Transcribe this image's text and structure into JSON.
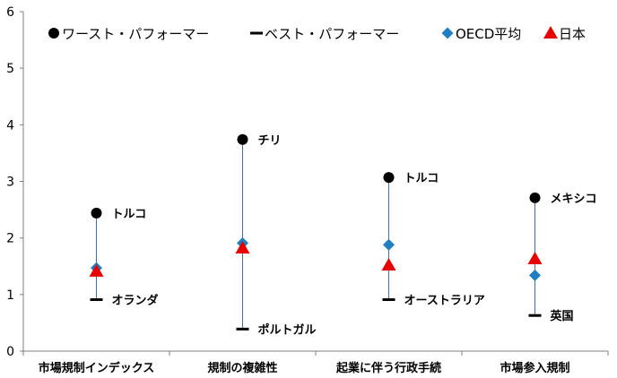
{
  "chart_data": {
    "type": "scatter",
    "title": "",
    "xlabel": "",
    "ylabel": "",
    "ylim": [
      0,
      6
    ],
    "yticks": [
      0,
      1,
      2,
      3,
      4,
      5,
      6
    ],
    "grid": false,
    "legend_position": "top",
    "categories": [
      "市場規制インデックス",
      "規制の複雑性",
      "起業に伴う行政手続",
      "市場参入規制"
    ],
    "series": [
      {
        "name": "ワースト・パフォーマー",
        "marker": "circle",
        "color": "#000000",
        "values": [
          2.44,
          3.74,
          3.07,
          2.71
        ],
        "labels": [
          "トルコ",
          "チリ",
          "トルコ",
          "メキシコ"
        ]
      },
      {
        "name": "ベスト・パフォーマー",
        "marker": "dash",
        "color": "#000000",
        "values": [
          0.91,
          0.39,
          0.91,
          0.63
        ],
        "labels": [
          "オランダ",
          "ポルトガル",
          "オーストラリア",
          "英国"
        ]
      },
      {
        "name": "OECD平均",
        "marker": "diamond",
        "color": "#1f7fc0",
        "values": [
          1.47,
          1.91,
          1.88,
          1.34
        ]
      },
      {
        "name": "日本",
        "marker": "triangle",
        "color": "#e60000",
        "values": [
          1.41,
          1.82,
          1.52,
          1.63
        ]
      }
    ]
  }
}
